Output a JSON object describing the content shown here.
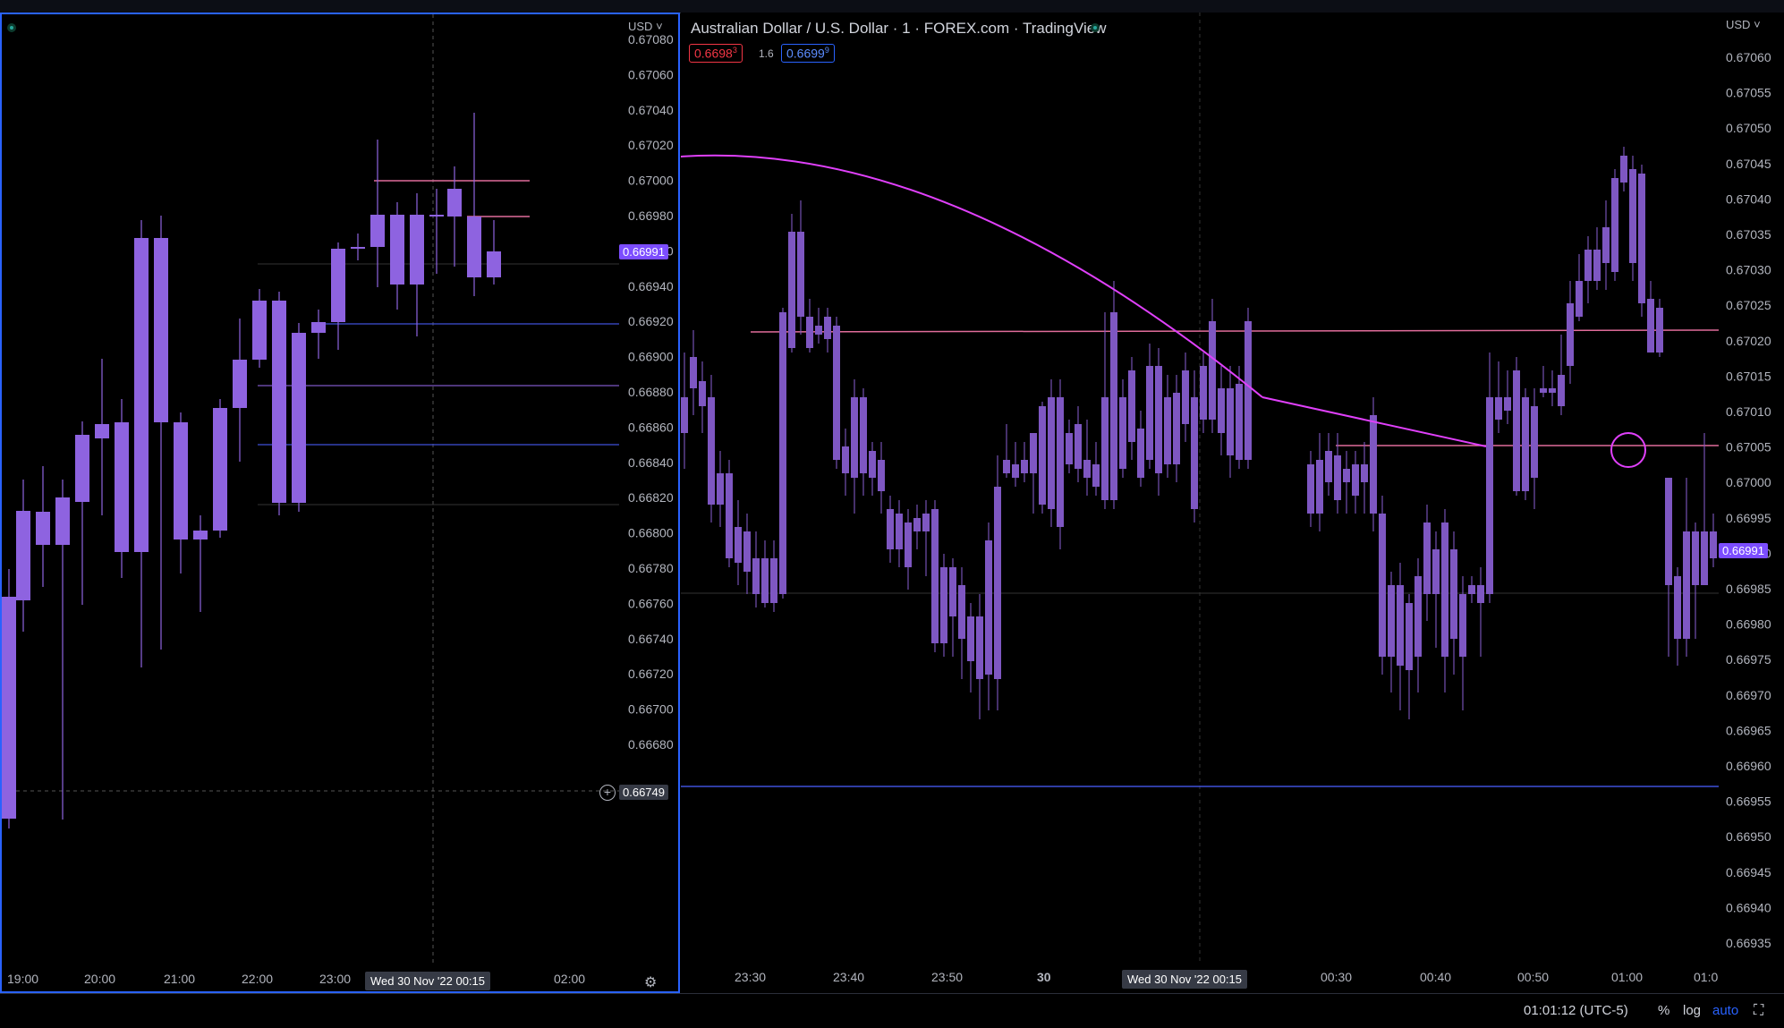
{
  "left_chart": {
    "currency": "USD",
    "price_labels": [
      "0.67080",
      "0.67060",
      "0.67040",
      "0.67020",
      "0.67000",
      "0.66980",
      "0.66960",
      "0.66940",
      "0.66920",
      "0.66900",
      "0.66880",
      "0.66860",
      "0.66840",
      "0.66820",
      "0.66800",
      "0.66780",
      "0.66760",
      "0.66740",
      "0.66720",
      "0.66700",
      "0.66680"
    ],
    "time_labels": [
      "19:00",
      "20:00",
      "21:00",
      "22:00",
      "23:00",
      "02:00"
    ],
    "current_price": "0.66991",
    "crosshair_price": "0.66749",
    "crosshair_time": "Wed 30 Nov '22  00:15",
    "candle_color": "#8e63e0"
  },
  "right_chart": {
    "title": "Australian Dollar / U.S. Dollar · 1 · FOREX.com · TradingView",
    "bid": "0.6698",
    "bid_sup": "3",
    "spread": "1.6",
    "ask": "0.6699",
    "ask_sup": "9",
    "currency": "USD",
    "price_labels": [
      "0.67060",
      "0.67055",
      "0.67050",
      "0.67045",
      "0.67040",
      "0.67035",
      "0.67030",
      "0.67025",
      "0.67020",
      "0.67015",
      "0.67010",
      "0.67005",
      "0.67000",
      "0.66995",
      "0.66990",
      "0.66985",
      "0.66980",
      "0.66975",
      "0.66970",
      "0.66965",
      "0.66960",
      "0.66955",
      "0.66950",
      "0.66945",
      "0.66940",
      "0.66935"
    ],
    "time_labels": [
      "23:30",
      "23:40",
      "23:50",
      "30",
      "00:30",
      "00:40",
      "00:50",
      "01:00",
      "01:0"
    ],
    "current_price": "0.66991",
    "crosshair_time": "Wed 30 Nov '22  00:15",
    "candle_color": "#7e57c2",
    "drawing_color": "#e040fb",
    "hline_color": "#e06c9a"
  },
  "status": {
    "clock": "01:01:12 (UTC-5)",
    "percent": "%",
    "log": "log",
    "auto": "auto"
  }
}
